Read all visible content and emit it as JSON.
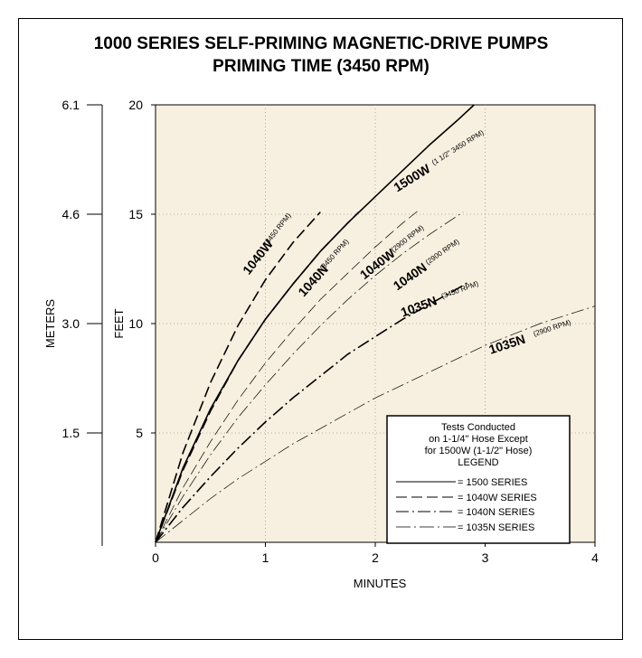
{
  "chart_data": {
    "type": "line",
    "title_line1": "1000 SERIES SELF-PRIMING MAGNETIC-DRIVE PUMPS",
    "title_line2": "PRIMING TIME (3450 RPM)",
    "xlabel": "MINUTES",
    "ylabel": "FEET",
    "ylabel_secondary": "METERS",
    "xlim": [
      0,
      4
    ],
    "ylim": [
      0,
      20
    ],
    "x_ticks": [
      "0",
      "1",
      "2",
      "3",
      "4"
    ],
    "y_ticks": [
      "5",
      "10",
      "15",
      "20"
    ],
    "meters_ticks": [
      "1.5",
      "3.0",
      "4.6",
      "6.1"
    ],
    "grid": true,
    "background": "#f7efdf",
    "series": [
      {
        "curve_label": "1500W",
        "rpm": "(1 1/2\" 3450 RPM)",
        "style": "solid",
        "weight": "bold",
        "points": [
          [
            0,
            0
          ],
          [
            0.25,
            3.4
          ],
          [
            0.5,
            6.1
          ],
          [
            0.75,
            8.3
          ],
          [
            1,
            10.2
          ],
          [
            1.25,
            11.8
          ],
          [
            1.5,
            13.3
          ],
          [
            1.75,
            14.6
          ],
          [
            2,
            15.8
          ],
          [
            2.25,
            17
          ],
          [
            2.5,
            18.2
          ],
          [
            2.75,
            19.3
          ],
          [
            2.9,
            20
          ]
        ]
      },
      {
        "curve_label": "1040W",
        "rpm": "(3450 RPM)",
        "style": "dashed",
        "weight": "bold",
        "points": [
          [
            0,
            0
          ],
          [
            0.25,
            4.1
          ],
          [
            0.5,
            7.3
          ],
          [
            0.75,
            9.9
          ],
          [
            1,
            12
          ],
          [
            1.25,
            13.7
          ],
          [
            1.5,
            15.1
          ]
        ]
      },
      {
        "curve_label": "1040N",
        "rpm": "(3450 RPM)",
        "style": "dashed",
        "weight": "bold",
        "points": [
          [
            0,
            0
          ],
          [
            0.25,
            3.3
          ],
          [
            0.5,
            6
          ],
          [
            0.75,
            8.3
          ],
          [
            1,
            10.2
          ],
          [
            1.25,
            11.8
          ],
          [
            1.5,
            13.3
          ],
          [
            1.75,
            14.6
          ],
          [
            1.85,
            15.1
          ]
        ]
      },
      {
        "curve_label": "1040W",
        "rpm": "(2900 RPM)",
        "style": "dashed",
        "weight": "light",
        "points": [
          [
            0,
            0
          ],
          [
            0.25,
            2.5
          ],
          [
            0.5,
            4.6
          ],
          [
            0.75,
            6.5
          ],
          [
            1,
            8.2
          ],
          [
            1.25,
            9.7
          ],
          [
            1.5,
            11.1
          ],
          [
            1.75,
            12.3
          ],
          [
            2,
            13.5
          ],
          [
            2.25,
            14.6
          ],
          [
            2.4,
            15.2
          ]
        ]
      },
      {
        "curve_label": "1040N",
        "rpm": "(2900 RPM)",
        "style": "dashdot",
        "weight": "light",
        "points": [
          [
            0,
            0
          ],
          [
            0.25,
            2.1
          ],
          [
            0.5,
            4
          ],
          [
            0.75,
            5.7
          ],
          [
            1,
            7.2
          ],
          [
            1.25,
            8.6
          ],
          [
            1.5,
            9.9
          ],
          [
            1.75,
            11.1
          ],
          [
            2,
            12.2
          ],
          [
            2.25,
            13.2
          ],
          [
            2.5,
            14.1
          ],
          [
            2.8,
            15.1
          ]
        ]
      },
      {
        "curve_label": "1035N",
        "rpm": "(3450 RPM)",
        "style": "dashdot",
        "weight": "bold",
        "points": [
          [
            0,
            0
          ],
          [
            0.25,
            1.6
          ],
          [
            0.5,
            3
          ],
          [
            0.75,
            4.3
          ],
          [
            1,
            5.5
          ],
          [
            1.25,
            6.6
          ],
          [
            1.5,
            7.6
          ],
          [
            1.75,
            8.6
          ],
          [
            2,
            9.4
          ],
          [
            2.25,
            10.2
          ],
          [
            2.5,
            10.9
          ],
          [
            2.75,
            11.6
          ],
          [
            2.85,
            11.9
          ]
        ]
      },
      {
        "curve_label": "1035N",
        "rpm": "(2900 RPM)",
        "style": "dashdot",
        "weight": "light",
        "points": [
          [
            0,
            0
          ],
          [
            0.25,
            1
          ],
          [
            0.5,
            2
          ],
          [
            0.75,
            2.9
          ],
          [
            1,
            3.7
          ],
          [
            1.25,
            4.5
          ],
          [
            1.5,
            5.2
          ],
          [
            1.75,
            5.9
          ],
          [
            2,
            6.6
          ],
          [
            2.25,
            7.2
          ],
          [
            2.5,
            7.8
          ],
          [
            2.75,
            8.4
          ],
          [
            3,
            9
          ],
          [
            3.25,
            9.5
          ],
          [
            3.5,
            10
          ],
          [
            3.75,
            10.4
          ],
          [
            4,
            10.8
          ]
        ]
      }
    ],
    "legend": {
      "note_lines": [
        "Tests Conducted",
        "on 1-1/4\" Hose Except",
        "for 1500W (1-1/2\" Hose)",
        "LEGEND"
      ],
      "entries": [
        {
          "text": "=   1500  SERIES",
          "style": "solid"
        },
        {
          "text": "= 1040W  SERIES",
          "style": "dashed"
        },
        {
          "text": "=  1040N  SERIES",
          "style": "dashdot"
        },
        {
          "text": "= 1035N SERIES",
          "style": "dashdot-light"
        }
      ]
    }
  }
}
